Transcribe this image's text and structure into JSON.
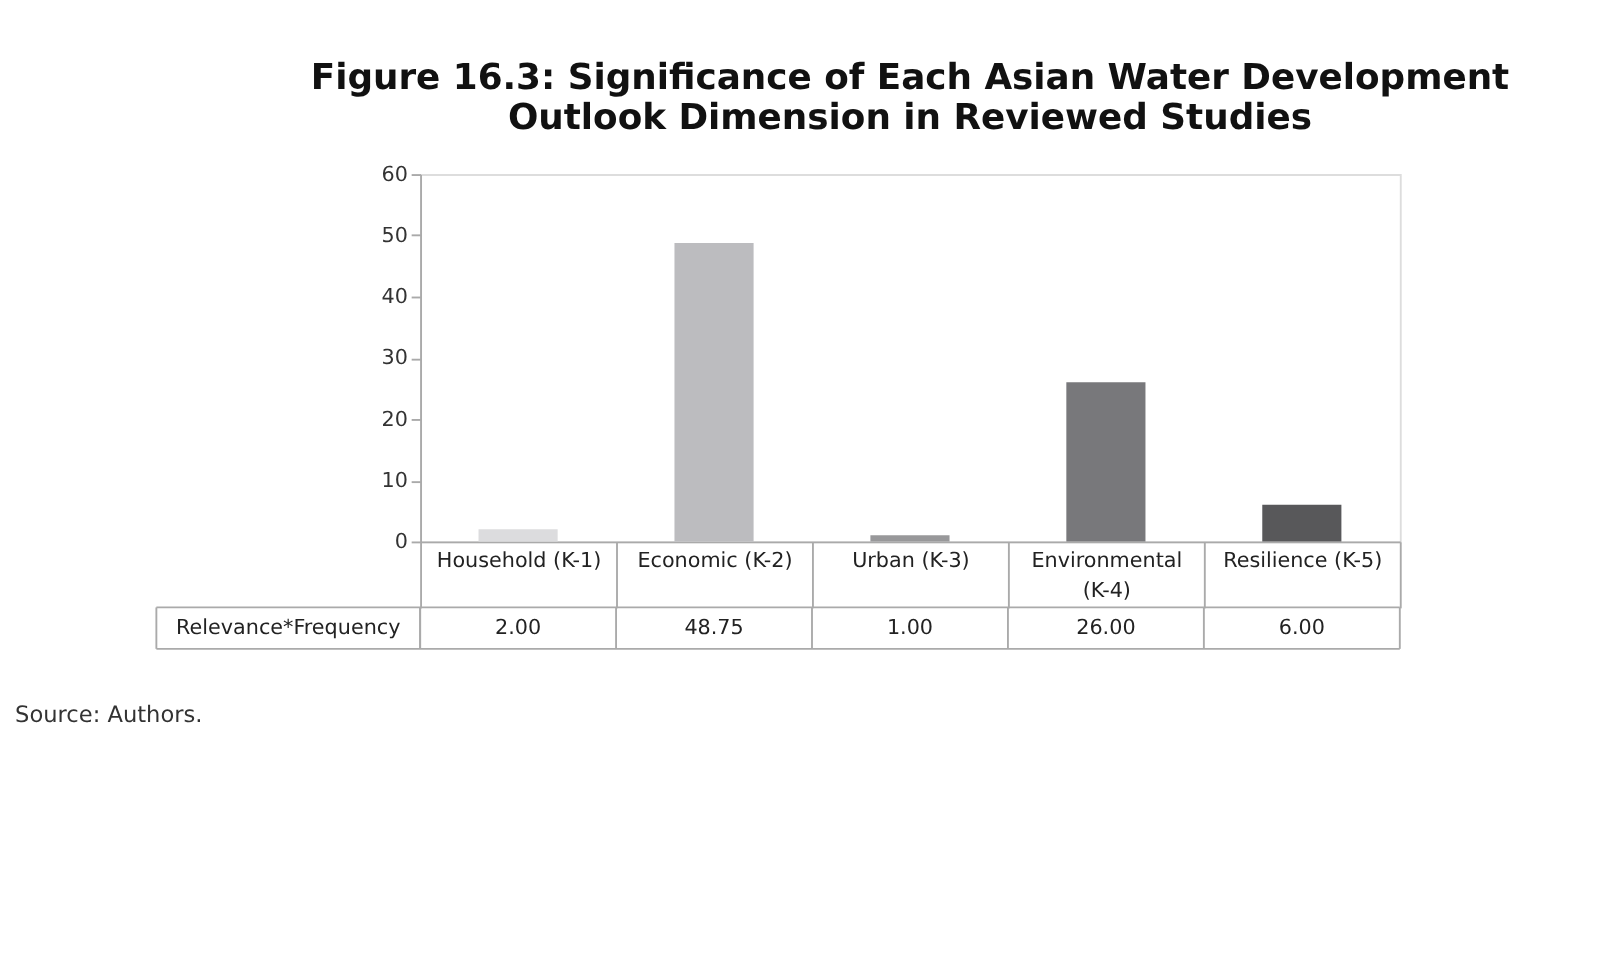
{
  "chart_data": {
    "type": "bar",
    "title": [
      "Figure 16.3: Significance of Each Asian Water Development",
      "Outlook Dimension in Reviewed Studies"
    ],
    "categories": [
      "Household (K-1)",
      "Economic (K-2)",
      "Urban  (K-3)",
      "Environmental (K-4)",
      "Resilience (K-5)"
    ],
    "series": [
      {
        "name": "Relevance*Frequency",
        "values": [
          2.0,
          48.75,
          1.0,
          26.0,
          6.0
        ],
        "colors": [
          "#dcdcde",
          "#bcbcbf",
          "#98989a",
          "#78787b",
          "#58585a"
        ],
        "value_labels": [
          "2.00",
          "48.75",
          "1.00",
          "26.00",
          "6.00"
        ]
      }
    ],
    "ylim": [
      0,
      60
    ],
    "yticks": [
      0,
      10,
      20,
      30,
      40,
      50,
      60
    ],
    "grid": false,
    "annotations": [
      "Source: Authors."
    ]
  }
}
